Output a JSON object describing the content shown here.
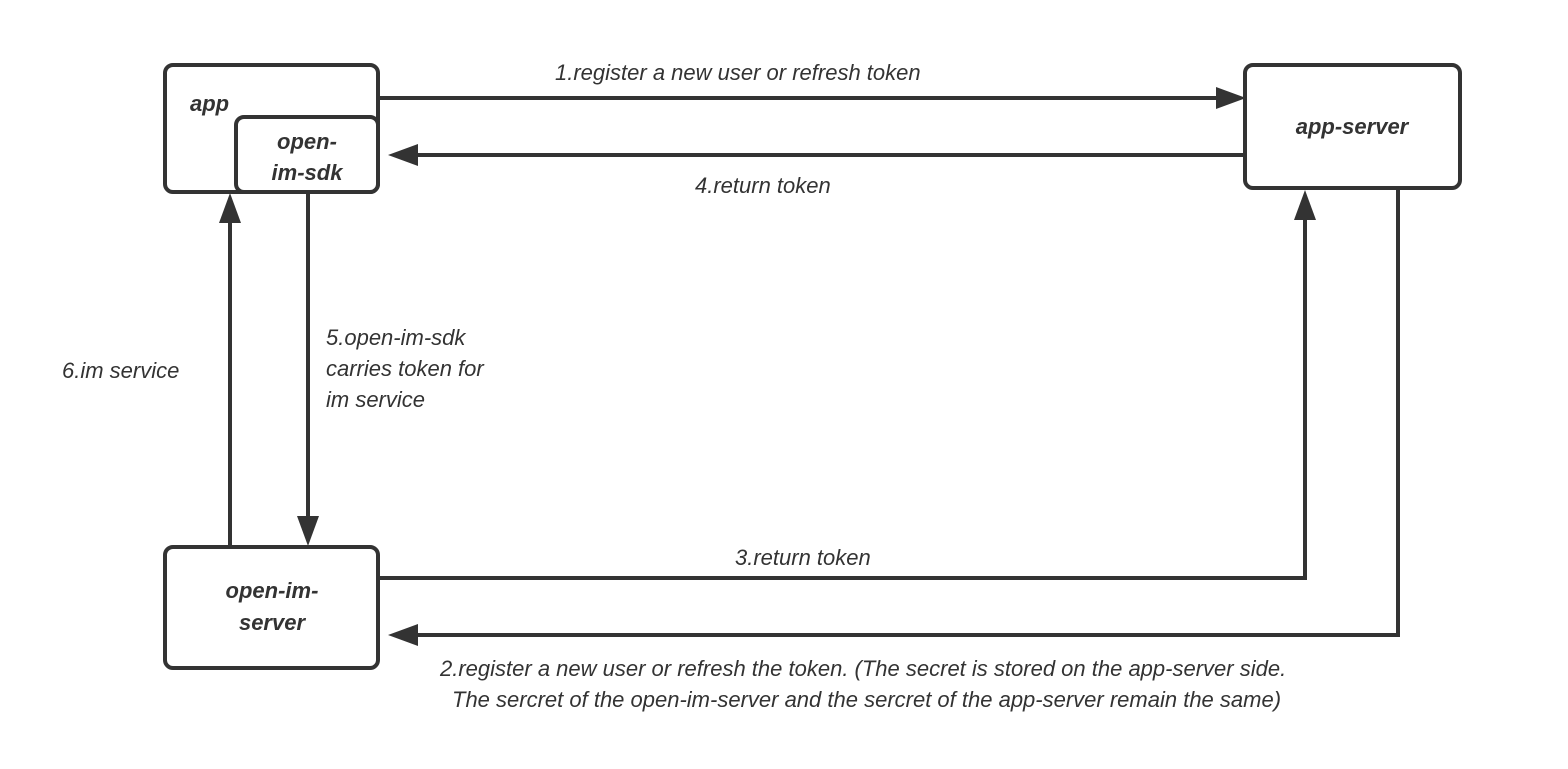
{
  "nodes": {
    "app": "app",
    "sdk_line1": "open-",
    "sdk_line2": "im-sdk",
    "app_server": "app-server",
    "im_server_line1": "open-im-",
    "im_server_line2": "server"
  },
  "edges": {
    "e1": "1.register a new user or refresh token",
    "e2_line1": "2.register a new user or refresh the token. (The secret is stored on the app-server side.",
    "e2_line2": "The sercret of the open-im-server and the sercret of the app-server remain the same)",
    "e3": "3.return token",
    "e4": "4.return token",
    "e5_line1": "5.open-im-sdk",
    "e5_line2": "carries token for",
    "e5_line3": "im service",
    "e6": "6.im service"
  },
  "colors": {
    "stroke": "#333333",
    "background": "#ffffff"
  }
}
